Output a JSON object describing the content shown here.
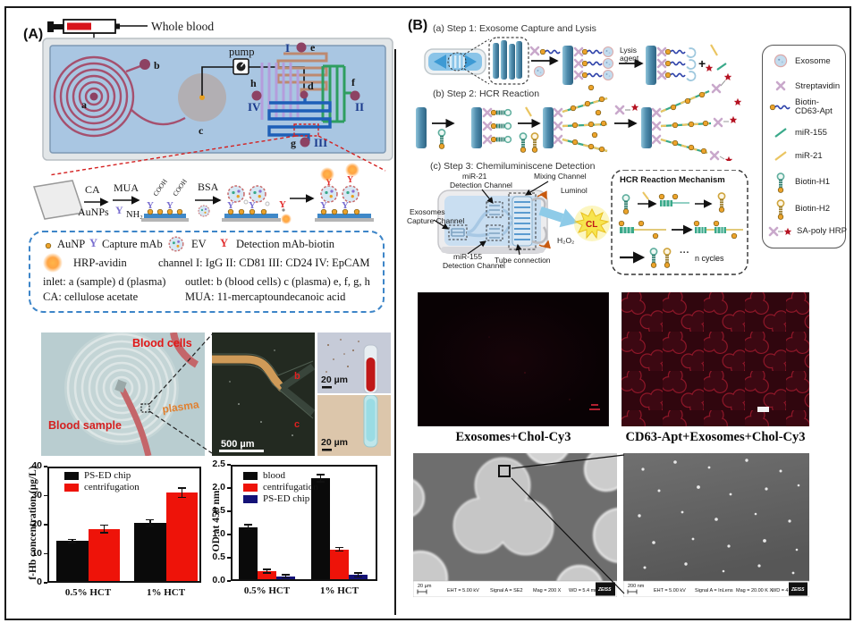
{
  "panelA": {
    "label": "(A)",
    "whole_blood": "Whole blood",
    "pump": "pump",
    "ports": {
      "a": "a",
      "b": "b",
      "c": "c",
      "d": "d",
      "e": "e",
      "f": "f",
      "g": "g",
      "h": "h"
    },
    "channels": {
      "i": "I",
      "ii": "II",
      "iii": "III",
      "iv": "IV"
    },
    "chem": {
      "ca": "CA",
      "aunps": "AuNPs",
      "mua": "MUA",
      "nh2": "NH₂",
      "cooh": "COOH",
      "bsa": "BSA"
    },
    "legend": {
      "aunp": "AuNP",
      "capture": "Capture mAb",
      "ev": "EV",
      "detection": "Detection mAb-biotin",
      "hrp": "HRP-avidin",
      "channel": "channel  I: IgG II: CD81 III: CD24 IV: EpCAM",
      "inlet": "inlet: a (sample) d (plasma)",
      "outlet": "outlet: b (blood cells) c (plasma) e, f, g, h",
      "ca": "CA: cellulose acetate",
      "mua": "MUA: 11-mercaptoundecanoic acid"
    },
    "photos": {
      "blood_cells": "Blood cells",
      "plasma": "plasma",
      "blood_sample": "Blood sample",
      "scale_500": "500 µm",
      "b": "b",
      "c": "c",
      "scale_20": "20 µm"
    }
  },
  "chart_data": [
    {
      "type": "bar",
      "title": "",
      "xlabel": "",
      "ylabel": "f-Hb concentration (µg/L)",
      "categories": [
        "0.5% HCT",
        "1% HCT"
      ],
      "ylim": [
        0,
        40
      ],
      "yticks": [
        "0",
        "10",
        "20",
        "30",
        "40"
      ],
      "grid": false,
      "legend_position": "top-left",
      "series": [
        {
          "name": "PS-ED chip",
          "color": "#0a0a0a",
          "values": [
            14.4,
            20.6
          ],
          "errors": [
            0.5,
            1.1
          ]
        },
        {
          "name": "centrifugation",
          "color": "#ee1309",
          "values": [
            18.5,
            31.0
          ],
          "errors": [
            1.3,
            1.6
          ]
        }
      ]
    },
    {
      "type": "bar",
      "title": "",
      "xlabel": "",
      "ylabel": "OD at 450 nm",
      "categories": [
        "0.5% HCT",
        "1% HCT"
      ],
      "ylim": [
        0,
        2.5
      ],
      "yticks": [
        "0.0",
        "0.5",
        "1.0",
        "1.5",
        "2.0",
        "2.5"
      ],
      "grid": false,
      "legend_position": "top-left",
      "series": [
        {
          "name": "blood",
          "color": "#0a0a0a",
          "values": [
            1.16,
            2.21
          ],
          "errors": [
            0.05,
            0.08
          ]
        },
        {
          "name": "centrifugation",
          "color": "#ee1309",
          "values": [
            0.21,
            0.68
          ],
          "errors": [
            0.04,
            0.04
          ]
        },
        {
          "name": "PS-ED chip",
          "color": "#141277",
          "values": [
            0.1,
            0.13
          ],
          "errors": [
            0.03,
            0.04
          ]
        }
      ]
    }
  ],
  "panelB": {
    "label": "(B)",
    "steps": {
      "s1": "(a) Step 1: Exosome Capture and Lysis",
      "s2": "(b) Step 2: HCR Reaction",
      "s3": "(c) Step 3: Chemiluminiscene Detection"
    },
    "step1": {
      "lysis1": "Lysis",
      "lysis2": "agent",
      "plus": "+"
    },
    "step3": {
      "mir21a": "miR-21",
      "mir21b": "Detection Channel",
      "mixing": "Mixing Channel",
      "luminol": "Luminol",
      "exo1": "Exosomes",
      "exo2": "Capture Channel",
      "h2o2": "H₂O₂",
      "tube": "Tube connection",
      "mir155a": "miR-155",
      "mir155b": "Detection Channel",
      "cl": "CL"
    },
    "hcr": {
      "title": "HCR Reaction Mechanism",
      "cycles": "n cycles",
      "dots": "···"
    },
    "legend": {
      "items": [
        {
          "l1": "Exosome"
        },
        {
          "l1": "Streptavidin"
        },
        {
          "l1": "Biotin-",
          "l2": "CD63-Apt"
        },
        {
          "l1": "miR-155"
        },
        {
          "l1": "miR-21"
        },
        {
          "l1": "Biotin-H1"
        },
        {
          "l1": "Biotin-H2"
        },
        {
          "l1": "SA-poly HRP"
        }
      ]
    },
    "fluor": {
      "left": "Exosomes+Chol-Cy3",
      "right": "CD63-Apt+Exosomes+Chol-Cy3"
    },
    "sem": {
      "left": {
        "scale": "20 µm",
        "eht": "EHT = 5.00 kV",
        "signal": "Signal A = SE2",
        "mag": "Mag =  200 X",
        "wd": "WD = 5.4 mm",
        "brand": "ZEISS"
      },
      "right": {
        "scale": "200 nm",
        "eht": "EHT = 5.00 kV",
        "signal": "Signal A = InLens",
        "mag": "Mag = 20.00 K X",
        "wd": "WD = 4.1 mm",
        "brand": "ZEISS"
      }
    }
  }
}
